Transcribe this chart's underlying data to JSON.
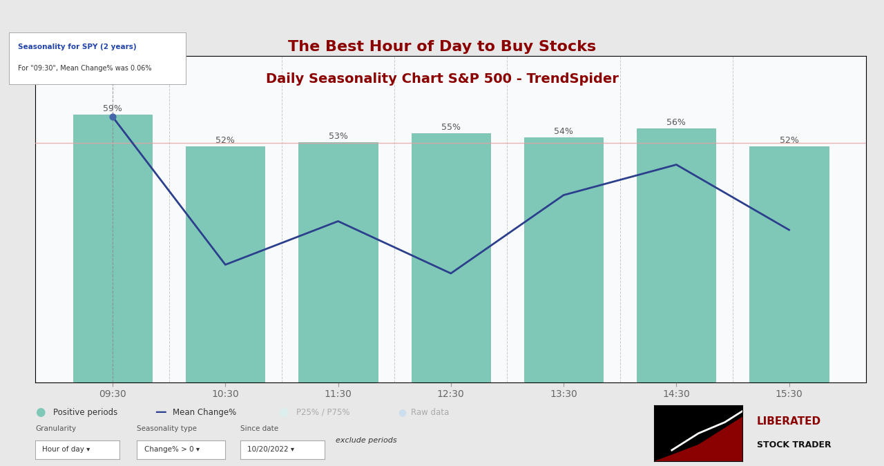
{
  "title_line1": "The Best Hour of Day to Buy Stocks",
  "title_line2": "Daily Seasonality Chart S&P 500 - TrendSpider",
  "title_color": "#8B0000",
  "hours": [
    "09:30",
    "10:30",
    "11:30",
    "12:30",
    "13:30",
    "14:30",
    "15:30"
  ],
  "bar_heights": [
    59,
    52,
    53,
    55,
    54,
    56,
    52
  ],
  "bar_color": "#7FC8B8",
  "bar_edge_color": "#6BB8A8",
  "mean_change": [
    0.06,
    -0.28,
    -0.18,
    -0.3,
    -0.12,
    -0.05,
    -0.2
  ],
  "line_color": "#2B3F8C",
  "bg_color": "#E8E8E8",
  "chart_bg": "#FFFFFF",
  "chart_area_bg": "#F8FAFB",
  "grid_color": "#CCCCCC",
  "xlabel_color": "#666666",
  "bar_label_color": "#555555",
  "tooltip_title": "Seasonality for SPY (2 years)",
  "tooltip_text": "For \"09:30\", Mean Change% was 0.06%",
  "marker_color": "#4466AA",
  "zero_line_color": "#E8A0A0",
  "legend_items": [
    "Positive periods",
    "Mean Change%",
    "P25% / P75%",
    "Raw data"
  ],
  "granularity_label": "Granularity",
  "granularity_value": "Hour of day",
  "seasonality_label": "Seasonality type",
  "seasonality_value": "Change% > 0",
  "since_label": "Since date",
  "since_value": "10/20/2022",
  "exclude_label": "exclude periods"
}
